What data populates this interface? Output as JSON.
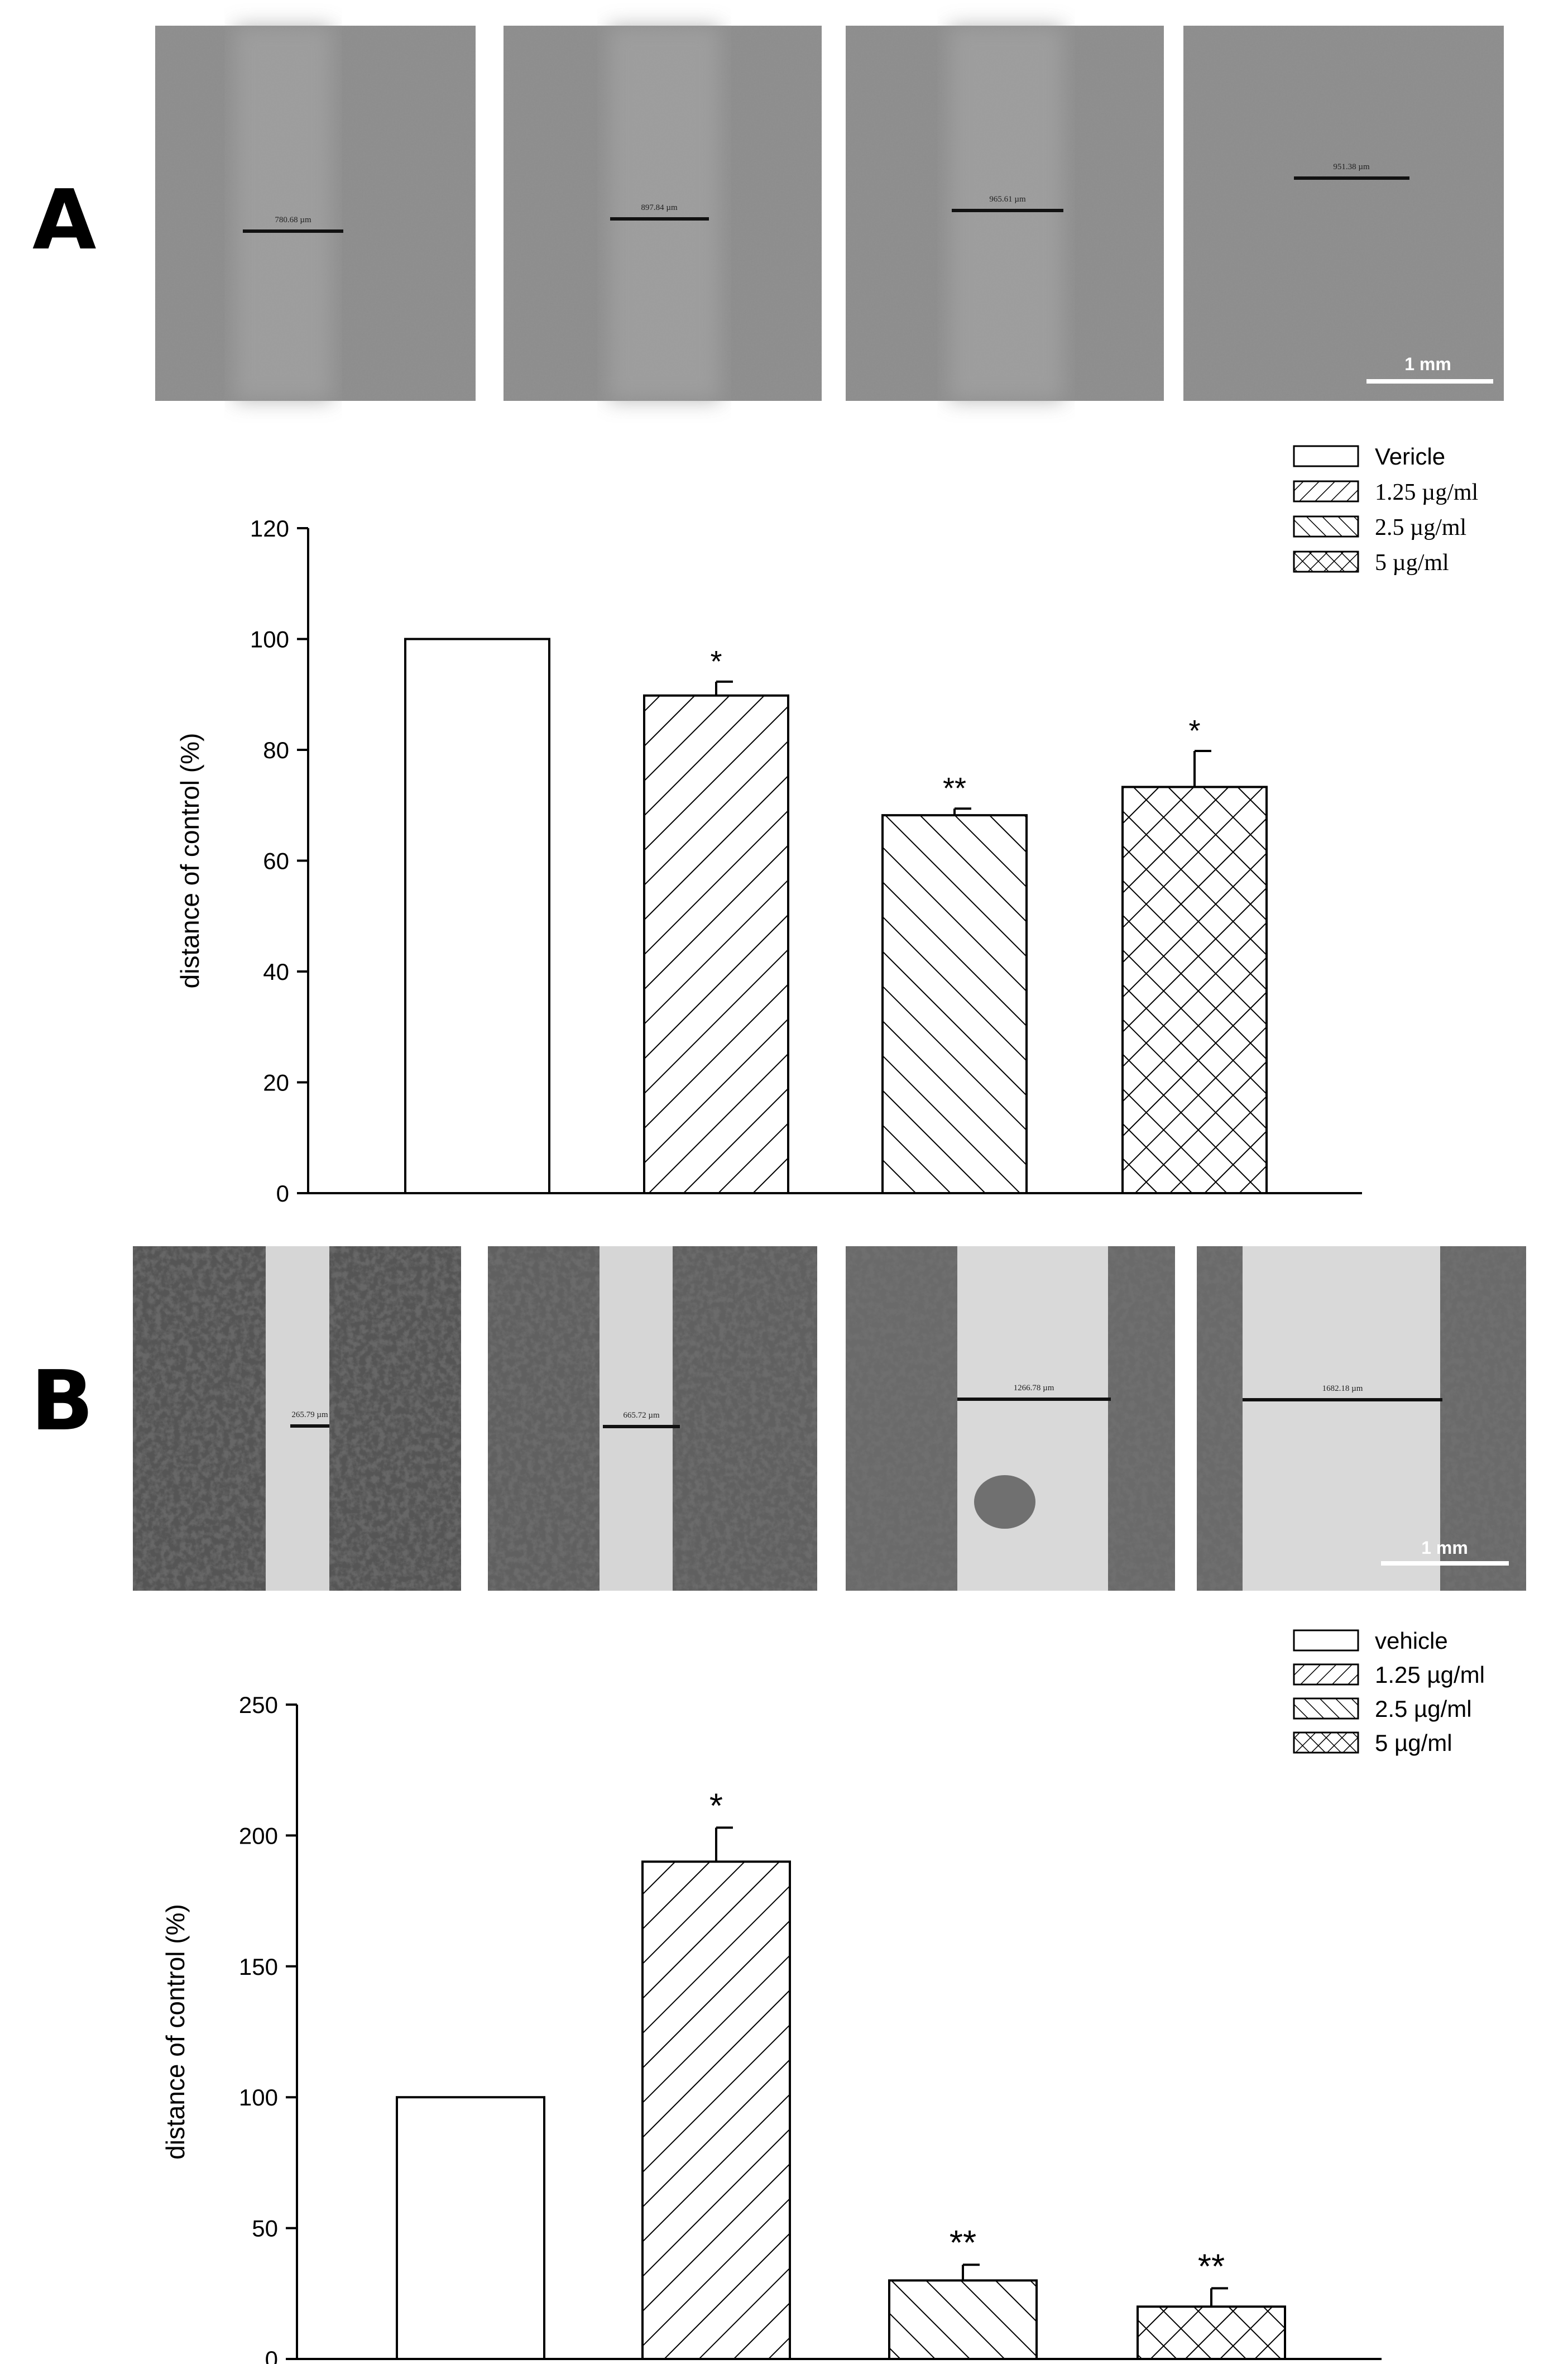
{
  "panels": [
    {
      "letter": "A",
      "micrographs": {
        "measurements": [
          "780.68 µm",
          "897.84 µm",
          "965.61 µm",
          "951.38 µm"
        ],
        "scale_bar": "1 mm",
        "style": "faint"
      },
      "chart_data": {
        "type": "bar",
        "title": "",
        "xlabel": "",
        "ylabel": "distance of control (%)",
        "ylim": [
          0,
          120
        ],
        "yticks": [
          "0",
          "20",
          "40",
          "60",
          "80",
          "100",
          "120"
        ],
        "legend_placement": "top-right",
        "legend_font": "serif-mixed",
        "categories": [
          "Vericle",
          "1.25 µg/ml",
          "2.5 µg/ml",
          "5 µg/ml"
        ],
        "values": [
          100,
          89.8,
          68.2,
          73.3
        ],
        "errors": [
          0,
          2.5,
          1.2,
          6.5
        ],
        "significance": [
          "",
          "*",
          "**",
          "*"
        ],
        "patterns": [
          "none",
          "forward",
          "backward",
          "cross"
        ]
      }
    },
    {
      "letter": "B",
      "micrographs": {
        "measurements": [
          "265.79 µm",
          "665.72 µm",
          "1266.78 µm",
          "1682.18 µm"
        ],
        "scale_bar": "1 mm",
        "style": "dense"
      },
      "chart_data": {
        "type": "bar",
        "title": "",
        "xlabel": "",
        "ylabel": "distance of control (%)",
        "ylim": [
          0,
          250
        ],
        "yticks": [
          "0",
          "50",
          "100",
          "150",
          "200",
          "250"
        ],
        "legend_placement": "top-right",
        "legend_font": "sans",
        "categories": [
          "vehicle",
          "1.25 µg/ml",
          "2.5 µg/ml",
          "5 µg/ml"
        ],
        "values": [
          100,
          190,
          30,
          20
        ],
        "errors": [
          0,
          13,
          6,
          7
        ],
        "significance": [
          "",
          "*",
          "**",
          "**"
        ],
        "patterns": [
          "none",
          "forward",
          "backward",
          "cross"
        ]
      }
    }
  ],
  "colors": {
    "ink": "#000000",
    "micrograph_bg_A": "#8c8c8c",
    "micrograph_bg_B": "#cfcfcf",
    "cell_dark": "#3a3a3a"
  }
}
